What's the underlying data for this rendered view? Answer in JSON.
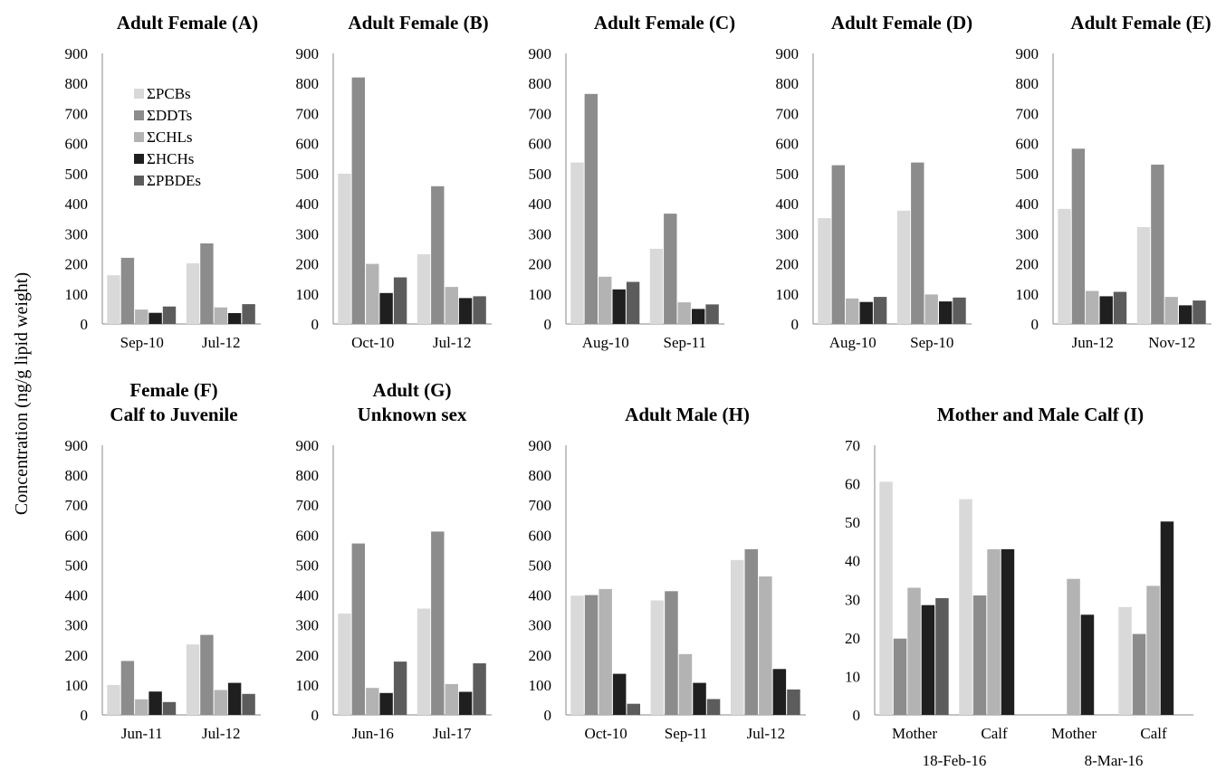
{
  "ylabel": "Concentration (ng/g lipid weight)",
  "series_colors": {
    "ΣPCBs": "#d9d9d9",
    "ΣDDTs": "#8c8c8c",
    "ΣCHLs": "#b3b3b3",
    "ΣHCHs": "#1f1f1f",
    "ΣPBDEs": "#5c5c5c"
  },
  "chart_data": [
    {
      "type": "bar",
      "title": [
        "Adult Female (A)"
      ],
      "ylim": [
        0,
        900
      ],
      "yticks": [
        "0",
        "100",
        "200",
        "300",
        "400",
        "500",
        "600",
        "700",
        "800",
        "900"
      ],
      "categories": [
        "Sep-10",
        "Jul-12"
      ],
      "legend": {
        "placement": "top-left",
        "entries": [
          "ΣPCBs",
          "ΣDDTs",
          "ΣCHLs",
          "ΣHCHs",
          "ΣPBDEs"
        ]
      },
      "series": [
        {
          "name": "ΣPCBs",
          "values": [
            162,
            202
          ]
        },
        {
          "name": "ΣDDTs",
          "values": [
            220,
            268
          ]
        },
        {
          "name": "ΣCHLs",
          "values": [
            48,
            55
          ]
        },
        {
          "name": "ΣHCHs",
          "values": [
            37,
            36
          ]
        },
        {
          "name": "ΣPBDEs",
          "values": [
            58,
            66
          ]
        }
      ]
    },
    {
      "type": "bar",
      "title": [
        "Adult Female (B)"
      ],
      "ylim": [
        0,
        900
      ],
      "yticks": [
        "0",
        "100",
        "200",
        "300",
        "400",
        "500",
        "600",
        "700",
        "800",
        "900"
      ],
      "categories": [
        "Oct-10",
        "Jul-12"
      ],
      "series": [
        {
          "name": "ΣPCBs",
          "values": [
            500,
            232
          ]
        },
        {
          "name": "ΣDDTs",
          "values": [
            820,
            458
          ]
        },
        {
          "name": "ΣCHLs",
          "values": [
            200,
            123
          ]
        },
        {
          "name": "ΣHCHs",
          "values": [
            103,
            86
          ]
        },
        {
          "name": "ΣPBDEs",
          "values": [
            155,
            92
          ]
        }
      ]
    },
    {
      "type": "bar",
      "title": [
        "Adult Female (C)"
      ],
      "ylim": [
        0,
        900
      ],
      "yticks": [
        "0",
        "100",
        "200",
        "300",
        "400",
        "500",
        "600",
        "700",
        "800",
        "900"
      ],
      "categories": [
        "Aug-10",
        "Sep-11"
      ],
      "series": [
        {
          "name": "ΣPCBs",
          "values": [
            537,
            250
          ]
        },
        {
          "name": "ΣDDTs",
          "values": [
            765,
            367
          ]
        },
        {
          "name": "ΣCHLs",
          "values": [
            157,
            72
          ]
        },
        {
          "name": "ΣHCHs",
          "values": [
            115,
            50
          ]
        },
        {
          "name": "ΣPBDEs",
          "values": [
            140,
            65
          ]
        }
      ]
    },
    {
      "type": "bar",
      "title": [
        "Adult Female (D)"
      ],
      "ylim": [
        0,
        900
      ],
      "yticks": [
        "0",
        "100",
        "200",
        "300",
        "400",
        "500",
        "600",
        "700",
        "800",
        "900"
      ],
      "categories": [
        "Aug-10",
        "Sep-10"
      ],
      "series": [
        {
          "name": "ΣPCBs",
          "values": [
            352,
            377
          ]
        },
        {
          "name": "ΣDDTs",
          "values": [
            528,
            537
          ]
        },
        {
          "name": "ΣCHLs",
          "values": [
            85,
            98
          ]
        },
        {
          "name": "ΣHCHs",
          "values": [
            73,
            75
          ]
        },
        {
          "name": "ΣPBDEs",
          "values": [
            90,
            88
          ]
        }
      ]
    },
    {
      "type": "bar",
      "title": [
        "Adult Female (E)"
      ],
      "ylim": [
        0,
        900
      ],
      "yticks": [
        "0",
        "100",
        "200",
        "300",
        "400",
        "500",
        "600",
        "700",
        "800",
        "900"
      ],
      "categories": [
        "Jun-12",
        "Nov-12"
      ],
      "series": [
        {
          "name": "ΣPCBs",
          "values": [
            383,
            322
          ]
        },
        {
          "name": "ΣDDTs",
          "values": [
            583,
            530
          ]
        },
        {
          "name": "ΣCHLs",
          "values": [
            110,
            90
          ]
        },
        {
          "name": "ΣHCHs",
          "values": [
            92,
            62
          ]
        },
        {
          "name": "ΣPBDEs",
          "values": [
            107,
            78
          ]
        }
      ]
    },
    {
      "type": "bar",
      "title": [
        "Female (F)",
        "Calf to Juvenile"
      ],
      "ylim": [
        0,
        900
      ],
      "yticks": [
        "0",
        "100",
        "200",
        "300",
        "400",
        "500",
        "600",
        "700",
        "800",
        "900"
      ],
      "categories": [
        "Jun-11",
        "Jul-12"
      ],
      "series": [
        {
          "name": "ΣPCBs",
          "values": [
            100,
            235
          ]
        },
        {
          "name": "ΣDDTs",
          "values": [
            180,
            267
          ]
        },
        {
          "name": "ΣCHLs",
          "values": [
            52,
            83
          ]
        },
        {
          "name": "ΣHCHs",
          "values": [
            78,
            107
          ]
        },
        {
          "name": "ΣPBDEs",
          "values": [
            43,
            70
          ]
        }
      ]
    },
    {
      "type": "bar",
      "title": [
        "Adult (G)",
        "Unknown sex"
      ],
      "ylim": [
        0,
        900
      ],
      "yticks": [
        "0",
        "100",
        "200",
        "300",
        "400",
        "500",
        "600",
        "700",
        "800",
        "900"
      ],
      "categories": [
        "Jun-16",
        "Jul-17"
      ],
      "series": [
        {
          "name": "ΣPCBs",
          "values": [
            338,
            355
          ]
        },
        {
          "name": "ΣDDTs",
          "values": [
            572,
            612
          ]
        },
        {
          "name": "ΣCHLs",
          "values": [
            90,
            103
          ]
        },
        {
          "name": "ΣHCHs",
          "values": [
            73,
            77
          ]
        },
        {
          "name": "ΣPBDEs",
          "values": [
            178,
            172
          ]
        }
      ]
    },
    {
      "type": "bar",
      "title": [
        "Adult Male (H)"
      ],
      "ylim": [
        0,
        900
      ],
      "yticks": [
        "0",
        "100",
        "200",
        "300",
        "400",
        "500",
        "600",
        "700",
        "800",
        "900"
      ],
      "categories": [
        "Oct-10",
        "Sep-11",
        "Jul-12"
      ],
      "series": [
        {
          "name": "ΣPCBs",
          "values": [
            398,
            382,
            517
          ]
        },
        {
          "name": "ΣDDTs",
          "values": [
            400,
            413,
            553
          ]
        },
        {
          "name": "ΣCHLs",
          "values": [
            420,
            203,
            462
          ]
        },
        {
          "name": "ΣHCHs",
          "values": [
            137,
            107,
            153
          ]
        },
        {
          "name": "ΣPBDEs",
          "values": [
            37,
            53,
            85
          ]
        }
      ]
    },
    {
      "type": "bar",
      "title": [
        "Mother and Male Calf (I)"
      ],
      "ylim": [
        0,
        70
      ],
      "yticks": [
        "0",
        "10",
        "20",
        "30",
        "40",
        "50",
        "60",
        "70"
      ],
      "categories": [
        "Mother",
        "Calf",
        "Mother",
        "Calf"
      ],
      "groups": [
        {
          "label": "18-Feb-16",
          "span": [
            0,
            1
          ]
        },
        {
          "label": "8-Mar-16",
          "span": [
            2,
            3
          ]
        }
      ],
      "series": [
        {
          "name": "ΣPCBs",
          "values": [
            60.5,
            56,
            null,
            28
          ]
        },
        {
          "name": "ΣDDTs",
          "values": [
            19.8,
            31,
            null,
            21
          ]
        },
        {
          "name": "ΣCHLs",
          "values": [
            33,
            43,
            35.3,
            33.5
          ]
        },
        {
          "name": "ΣHCHs",
          "values": [
            28.5,
            43,
            26,
            50.2
          ]
        },
        {
          "name": "ΣPBDEs",
          "values": [
            30.3,
            null,
            null,
            null
          ]
        }
      ]
    }
  ]
}
